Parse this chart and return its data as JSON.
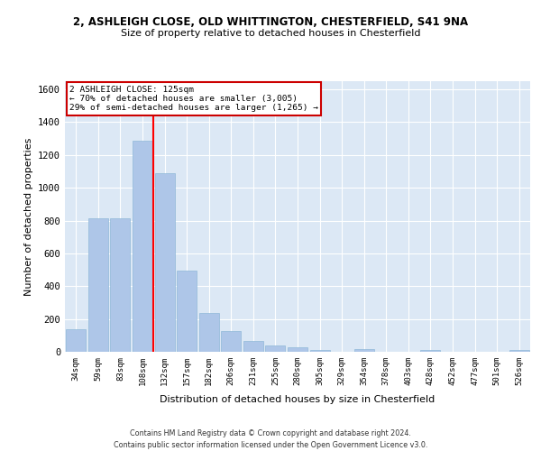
{
  "title_line1": "2, ASHLEIGH CLOSE, OLD WHITTINGTON, CHESTERFIELD, S41 9NA",
  "title_line2": "Size of property relative to detached houses in Chesterfield",
  "xlabel": "Distribution of detached houses by size in Chesterfield",
  "ylabel": "Number of detached properties",
  "categories": [
    "34sqm",
    "59sqm",
    "83sqm",
    "108sqm",
    "132sqm",
    "157sqm",
    "182sqm",
    "206sqm",
    "231sqm",
    "255sqm",
    "280sqm",
    "305sqm",
    "329sqm",
    "354sqm",
    "378sqm",
    "403sqm",
    "428sqm",
    "452sqm",
    "477sqm",
    "501sqm",
    "526sqm"
  ],
  "values": [
    140,
    815,
    815,
    1285,
    1090,
    495,
    235,
    125,
    65,
    38,
    27,
    12,
    0,
    15,
    0,
    0,
    13,
    0,
    0,
    0,
    13
  ],
  "bar_color": "#aec6e8",
  "bar_edge_color": "#8fb8d8",
  "annotation_title": "2 ASHLEIGH CLOSE: 125sqm",
  "annotation_line2": "← 70% of detached houses are smaller (3,005)",
  "annotation_line3": "29% of semi-detached houses are larger (1,265) →",
  "annotation_box_color": "#ffffff",
  "annotation_box_edge_color": "#cc0000",
  "footer_line1": "Contains HM Land Registry data © Crown copyright and database right 2024.",
  "footer_line2": "Contains public sector information licensed under the Open Government Licence v3.0.",
  "background_color": "#dce8f5",
  "ylim": [
    0,
    1650
  ],
  "yticks": [
    0,
    200,
    400,
    600,
    800,
    1000,
    1200,
    1400,
    1600
  ]
}
